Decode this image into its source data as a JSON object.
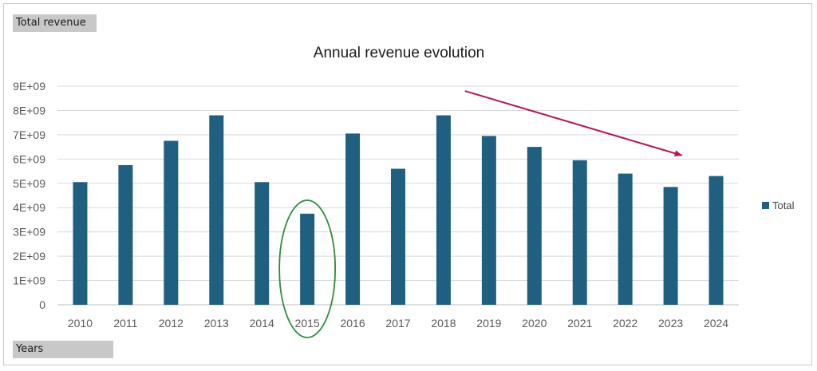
{
  "field_buttons": {
    "values": "Total revenue",
    "axis": "Years"
  },
  "chart_data": {
    "type": "bar",
    "title": "Annual revenue evolution",
    "categories": [
      "2010",
      "2011",
      "2012",
      "2013",
      "2014",
      "2015",
      "2016",
      "2017",
      "2018",
      "2019",
      "2020",
      "2021",
      "2022",
      "2023",
      "2024"
    ],
    "series": [
      {
        "name": "Total",
        "color": "#1f5f80",
        "values": [
          5050000000,
          5750000000,
          6750000000,
          7800000000,
          5050000000,
          3750000000,
          7050000000,
          5600000000,
          7800000000,
          6950000000,
          6500000000,
          5950000000,
          5400000000,
          4850000000,
          5300000000
        ]
      }
    ],
    "ylim": [
      0,
      9000000000
    ],
    "yticks": [
      0,
      1000000000,
      2000000000,
      3000000000,
      4000000000,
      5000000000,
      6000000000,
      7000000000,
      8000000000,
      9000000000
    ],
    "ytick_labels": [
      "0",
      "1E+09",
      "2E+09",
      "3E+09",
      "4E+09",
      "5E+09",
      "6E+09",
      "7E+09",
      "8E+09",
      "9E+09"
    ],
    "grid": true,
    "legend": "right",
    "annotations": [
      {
        "type": "ellipse",
        "target_category": "2015",
        "color": "#2e8b3e"
      },
      {
        "type": "arrow",
        "from": {
          "x": "2019",
          "y": 8800000000
        },
        "to": {
          "x": "2023",
          "y": 6150000000
        },
        "color": "#b0185a"
      }
    ]
  }
}
